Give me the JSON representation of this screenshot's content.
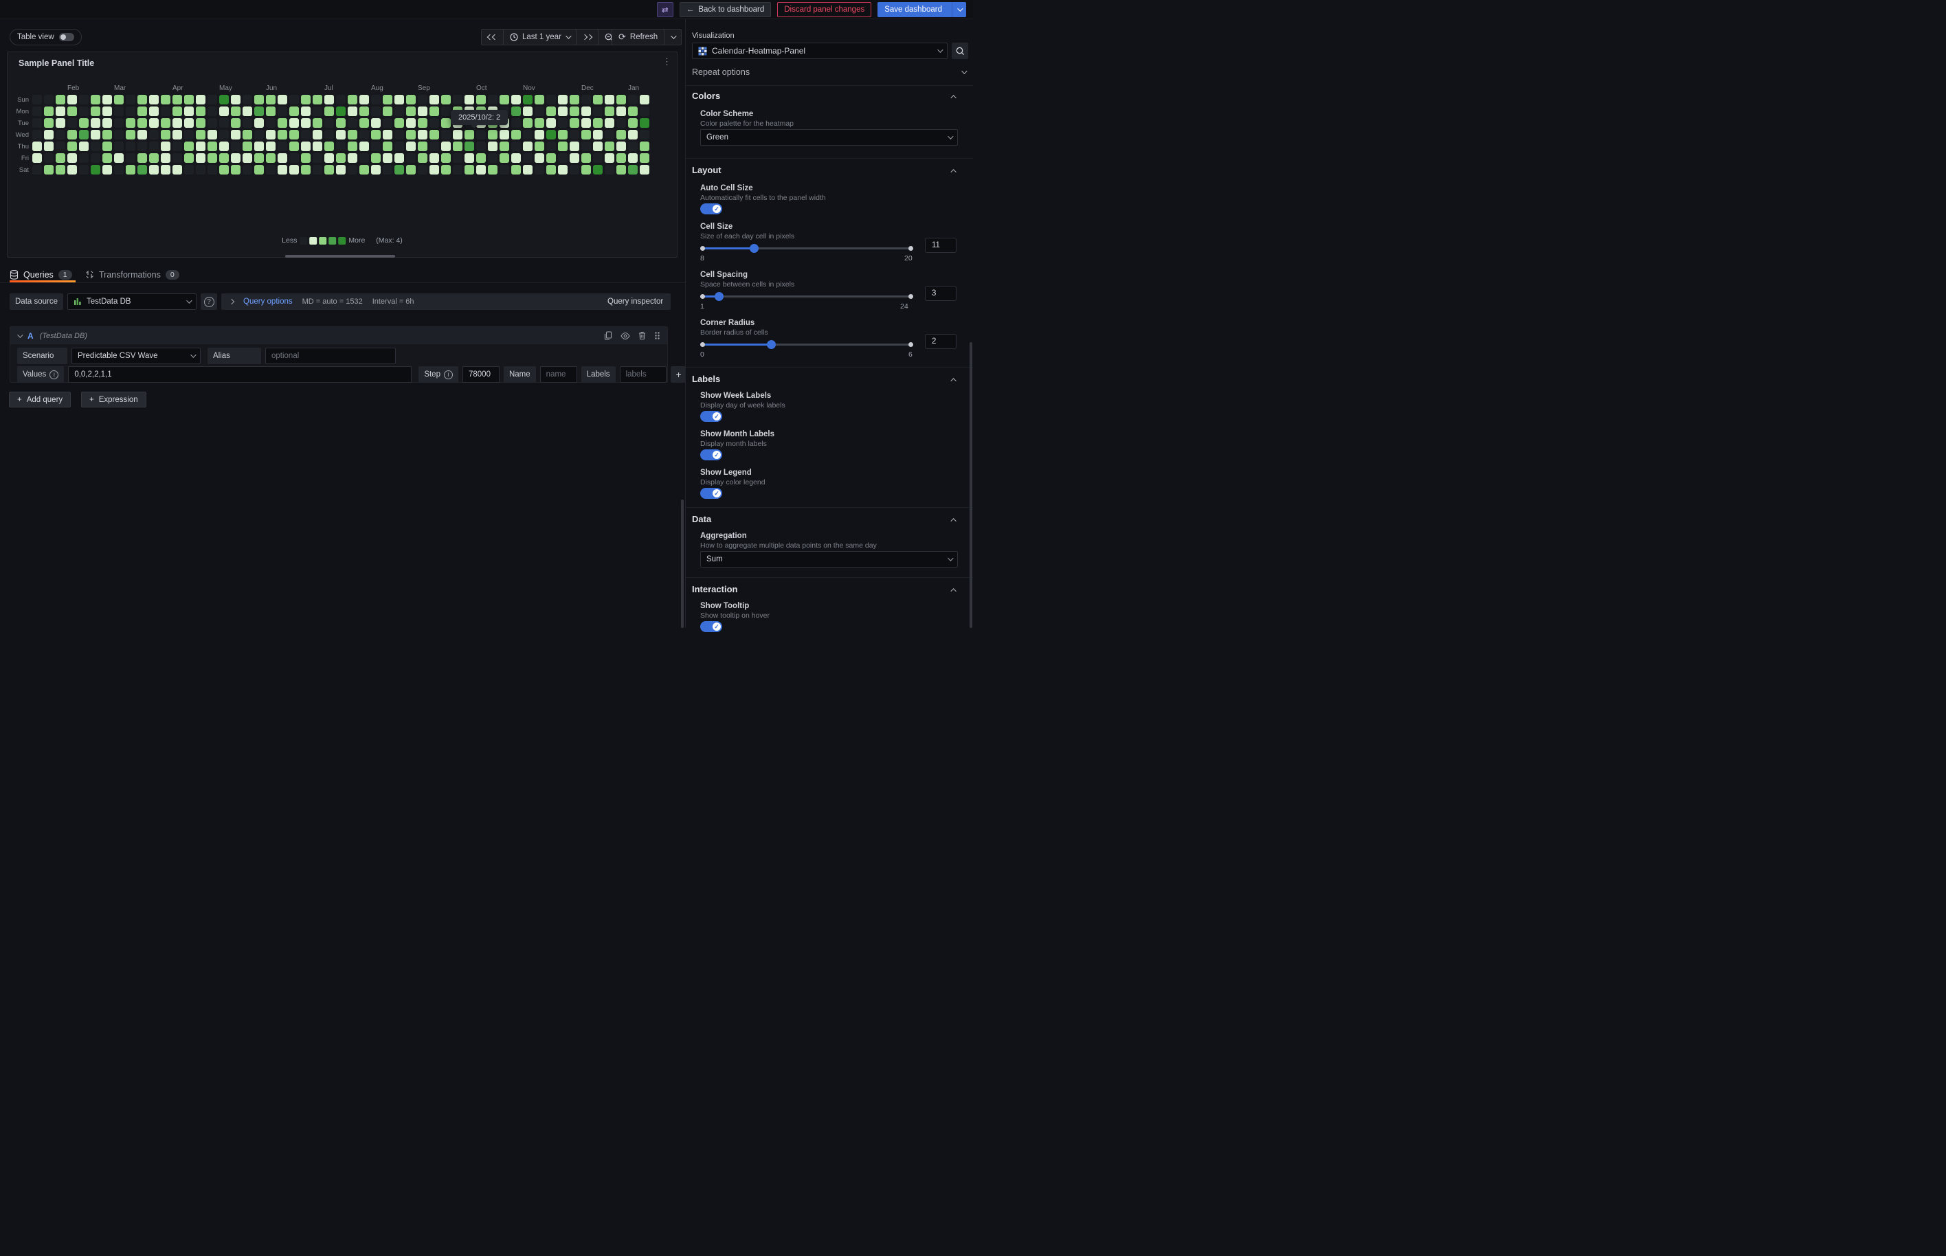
{
  "topbar": {
    "back_label": "Back to dashboard",
    "discard_label": "Discard panel changes",
    "save_label": "Save dashboard"
  },
  "toolbar": {
    "table_view_label": "Table view",
    "time_range": "Last 1 year",
    "refresh_label": "Refresh"
  },
  "panel": {
    "title": "Sample Panel Title",
    "tooltip_text": "2025/10/2: 2",
    "heatmap": {
      "type": "heatmap",
      "day_labels": [
        "Sun",
        "Mon",
        "Tue",
        "Wed",
        "Thu",
        "Fri",
        "Sat"
      ],
      "months": [
        {
          "label": "Feb",
          "week": 3
        },
        {
          "label": "Mar",
          "week": 7
        },
        {
          "label": "Apr",
          "week": 12
        },
        {
          "label": "May",
          "week": 16
        },
        {
          "label": "Jun",
          "week": 20
        },
        {
          "label": "Jul",
          "week": 25
        },
        {
          "label": "Aug",
          "week": 29
        },
        {
          "label": "Sep",
          "week": 33
        },
        {
          "label": "Oct",
          "week": 38
        },
        {
          "label": "Nov",
          "week": 42
        },
        {
          "label": "Dec",
          "week": 47
        },
        {
          "label": "Jan",
          "week": 51
        }
      ],
      "weeks": [
        "0000110",
        "0221102",
        "2110022",
        "1202211",
        "0023100",
        "2211004",
        "1112221",
        "2000010",
        "0022002",
        "2221023",
        "1110021",
        "2022111",
        "2211001",
        "2110220",
        "1222110",
        "0001220",
        "4100122",
        "1221012",
        "0102210",
        "2310122",
        "2201120",
        "1022011",
        "0212201",
        "2110122",
        "2021100",
        "1200212",
        "0421021",
        "2102210",
        "1220102",
        "0012021",
        "2201210",
        "1020013",
        "2212102",
        "0121220",
        "1202011",
        "2020122",
        "0211200",
        "1102312",
        "2210021",
        "0122102",
        "2011220",
        "1302012",
        "4120101",
        "2021210",
        "0214022",
        "1102201",
        "2220110",
        "0112022",
        "2021104",
        "1210210",
        "2102122",
        "0221013",
        "1040221"
      ],
      "levels": [
        "#1d2126",
        "#d9f0d0",
        "#90d381",
        "#4aa34a",
        "#2e8b2e"
      ],
      "legend": {
        "less_label": "Less",
        "more_label": "More",
        "max_label": "(Max: 4)"
      }
    }
  },
  "queries_section": {
    "tabs": [
      {
        "label": "Queries",
        "count": "1"
      },
      {
        "label": "Transformations",
        "count": "0"
      }
    ],
    "datasource_label": "Data source",
    "datasource_value": "TestData DB",
    "query_options_label": "Query options",
    "md_text": "MD = auto = 1532",
    "interval_text": "Interval = 6h",
    "inspector_label": "Query inspector",
    "query": {
      "ref": "A",
      "ds_note": "(TestData DB)",
      "scenario_label": "Scenario",
      "scenario_value": "Predictable CSV Wave",
      "alias_label": "Alias",
      "alias_placeholder": "optional",
      "values_label": "Values",
      "values_value": "0,0,2,2,1,1",
      "step_label": "Step",
      "step_value": "78000",
      "name_label": "Name",
      "name_placeholder": "name",
      "labels_label": "Labels",
      "labels_placeholder": "labels"
    },
    "add_query_label": "Add query",
    "expression_label": "Expression"
  },
  "sidebar": {
    "visualization_label": "Visualization",
    "visualization_value": "Calendar-Heatmap-Panel",
    "repeat_options_label": "Repeat options",
    "colors": {
      "title": "Colors",
      "scheme_label": "Color Scheme",
      "scheme_desc": "Color palette for the heatmap",
      "scheme_value": "Green"
    },
    "layout": {
      "title": "Layout",
      "auto_cell": {
        "label": "Auto Cell Size",
        "desc": "Automatically fit cells to the panel width",
        "on": true
      },
      "cell_size": {
        "label": "Cell Size",
        "desc": "Size of each day cell in pixels",
        "min": 8,
        "max": 20,
        "value": 11
      },
      "cell_spacing": {
        "label": "Cell Spacing",
        "desc": "Space between cells in pixels",
        "min": 1,
        "max": 24,
        "value": 3
      },
      "corner_radius": {
        "label": "Corner Radius",
        "desc": "Border radius of cells",
        "min": 0,
        "max": 6,
        "value": 2
      }
    },
    "labels": {
      "title": "Labels",
      "week": {
        "label": "Show Week Labels",
        "desc": "Display day of week labels",
        "on": true
      },
      "month": {
        "label": "Show Month Labels",
        "desc": "Display month labels",
        "on": true
      },
      "legend": {
        "label": "Show Legend",
        "desc": "Display color legend",
        "on": true
      }
    },
    "data": {
      "title": "Data",
      "aggregation_label": "Aggregation",
      "aggregation_desc": "How to aggregate multiple data points on the same day",
      "aggregation_value": "Sum"
    },
    "interaction": {
      "title": "Interaction",
      "tooltip": {
        "label": "Show Tooltip",
        "desc": "Show tooltip on hover",
        "on": true
      }
    }
  }
}
